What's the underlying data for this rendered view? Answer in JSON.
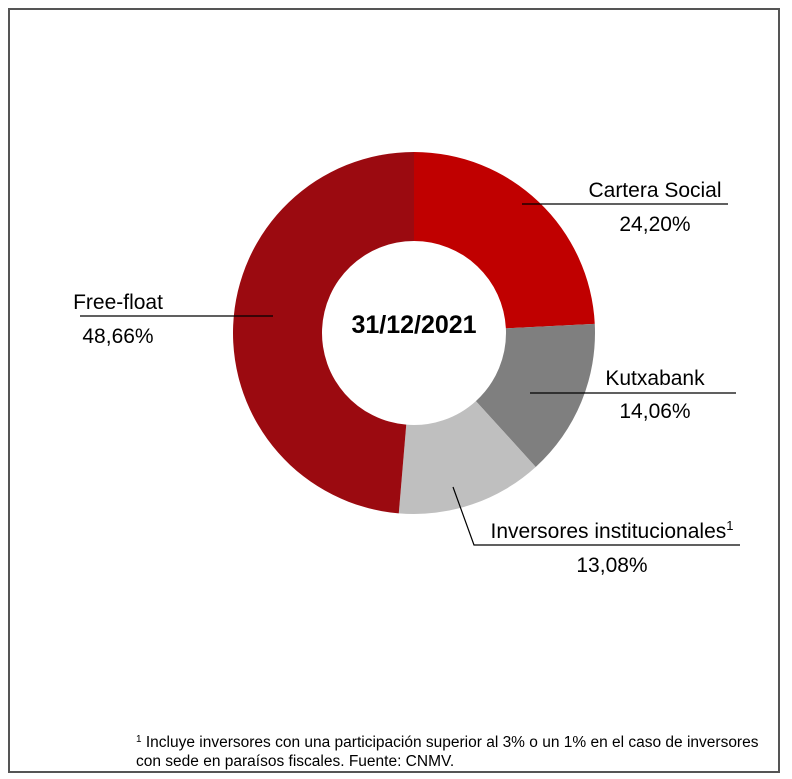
{
  "chart_data": {
    "type": "pie",
    "variant": "donut",
    "center_label": "31/12/2021",
    "slices": [
      {
        "name": "Cartera Social",
        "superscript": "",
        "value_label": "24,20%",
        "value": 24.2,
        "color": "#c00000"
      },
      {
        "name": "Kutxabank",
        "superscript": "",
        "value_label": "14,06%",
        "value": 14.06,
        "color": "#7f7f7f"
      },
      {
        "name": "Inversores institucionales",
        "superscript": "1",
        "value_label": "13,08%",
        "value": 13.08,
        "color": "#bfbfbf"
      },
      {
        "name": "Free-float",
        "superscript": "",
        "value_label": "48,66%",
        "value": 48.66,
        "color": "#9b0a10"
      }
    ]
  },
  "footnote": {
    "marker": "1",
    "line1": "Incluye inversores con una participación superior al 3% o un 1% en el caso de inversores",
    "line2": "con sede en paraísos fiscales. Fuente: CNMV."
  }
}
